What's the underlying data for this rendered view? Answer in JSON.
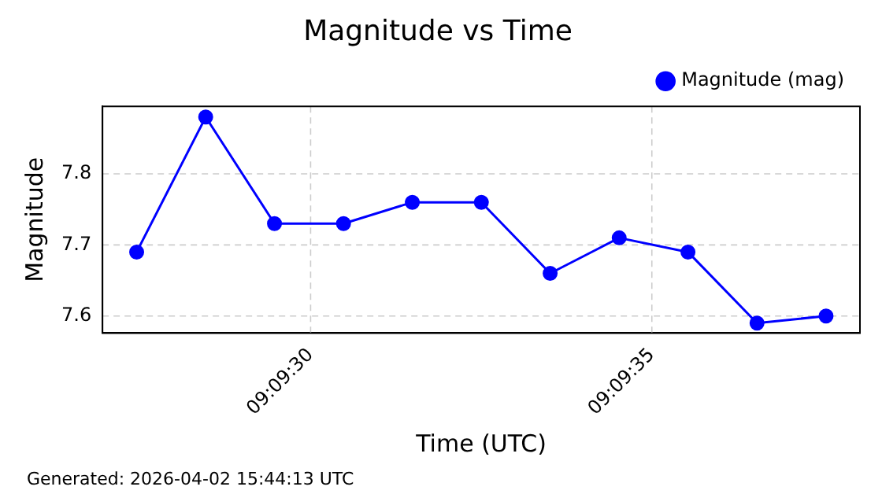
{
  "chart_data": {
    "type": "line",
    "title": "Magnitude vs Time",
    "xlabel": "Time (UTC)",
    "ylabel": "Magnitude",
    "annotations": [
      "Generated: 2026-04-02 15:44:13 UTC"
    ],
    "x": [
      9.157625,
      9.157906,
      9.158186,
      9.158467,
      9.158747,
      9.159028,
      9.159308,
      9.159589,
      9.159869,
      9.16015,
      9.160431
    ],
    "series": [
      {
        "name": "Magnitude (mag)",
        "color": "#0000ff",
        "values": [
          7.69,
          7.88,
          7.73,
          7.73,
          7.76,
          7.76,
          7.66,
          7.71,
          7.69,
          7.59,
          7.6
        ]
      }
    ],
    "xlim": [
      9.157486,
      9.160569
    ],
    "xticks": [
      {
        "value": 9.158333,
        "label": "09:09:30"
      },
      {
        "value": 9.159722,
        "label": "09:09:35"
      }
    ],
    "ylim": [
      7.576,
      7.895
    ],
    "yticks": [
      7.6,
      7.7,
      7.8
    ],
    "grid": true,
    "legend": "top right",
    "marker": "circle",
    "line_style": "solid"
  }
}
